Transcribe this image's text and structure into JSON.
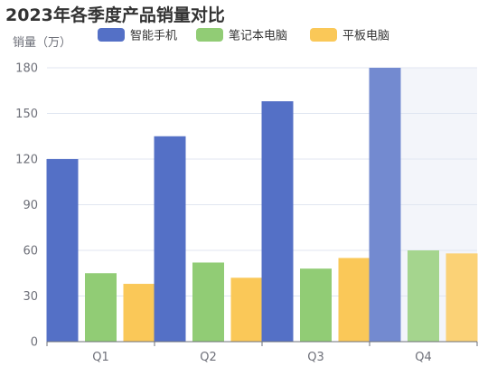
{
  "chart_data": {
    "type": "bar",
    "title": "2023年各季度产品销量对比",
    "ylabel": "销量（万）",
    "xlabel": "",
    "categories": [
      "Q1",
      "Q2",
      "Q3",
      "Q4"
    ],
    "ylim": [
      0,
      180
    ],
    "yticks": [
      0,
      30,
      60,
      90,
      120,
      150,
      180
    ],
    "grid": true,
    "legend_position": "top",
    "highlighted_category": "Q4",
    "series": [
      {
        "name": "智能手机",
        "color": "#5470c6",
        "values": [
          120,
          135,
          158,
          180
        ]
      },
      {
        "name": "笔记本电脑",
        "color": "#91cc75",
        "values": [
          45,
          52,
          48,
          60
        ]
      },
      {
        "name": "平板电脑",
        "color": "#fac858",
        "values": [
          38,
          42,
          55,
          58
        ]
      }
    ]
  }
}
